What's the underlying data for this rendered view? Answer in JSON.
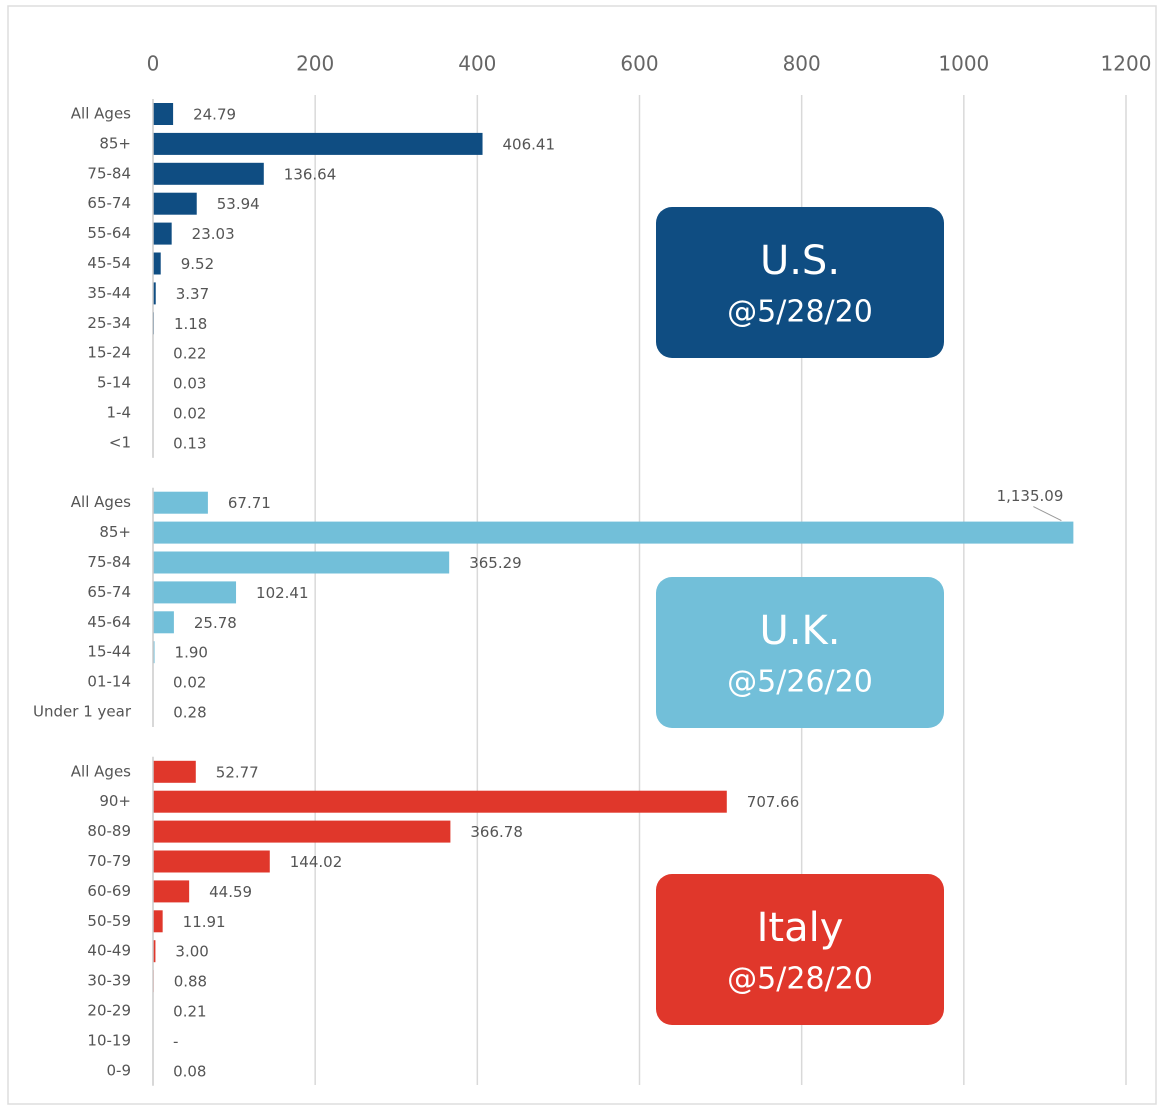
{
  "chart_data": {
    "type": "bar",
    "orientation": "horizontal",
    "xlim": [
      0,
      1200
    ],
    "xticks": [
      0,
      200,
      400,
      600,
      800,
      1000,
      1200
    ],
    "grid": true,
    "groups": [
      {
        "label": "U.S.",
        "date": "@5/28/20",
        "color": "#0f4d82",
        "categories": [
          "All Ages",
          "85+",
          "75-84",
          "65-74",
          "55-64",
          "45-54",
          "35-44",
          "25-34",
          "15-24",
          "5-14",
          "1-4",
          "<1"
        ],
        "values": [
          24.79,
          406.41,
          136.64,
          53.94,
          23.03,
          9.52,
          3.37,
          1.18,
          0.22,
          0.03,
          0.02,
          0.13
        ],
        "value_labels": [
          "24.79",
          "406.41",
          "136.64",
          "53.94",
          "23.03",
          "9.52",
          "3.37",
          "1.18",
          "0.22",
          "0.03",
          "0.02",
          "0.13"
        ]
      },
      {
        "label": "U.K.",
        "date": "@5/26/20",
        "color": "#72bfd9",
        "categories": [
          "All Ages",
          "85+",
          "75-84",
          "65-74",
          "45-64",
          "15-44",
          "01-14",
          "Under 1 year"
        ],
        "values": [
          67.71,
          1135.09,
          365.29,
          102.41,
          25.78,
          1.9,
          0.02,
          0.28
        ],
        "value_labels": [
          "67.71",
          "1,135.09",
          "365.29",
          "102.41",
          "25.78",
          "1.90",
          "0.02",
          "0.28"
        ]
      },
      {
        "label": "Italy",
        "date": "@5/28/20",
        "color": "#e0372b",
        "categories": [
          "All Ages",
          "90+",
          "80-89",
          "70-79",
          "60-69",
          "50-59",
          "40-49",
          "30-39",
          "20-29",
          "10-19",
          "0-9"
        ],
        "values": [
          52.77,
          707.66,
          366.78,
          144.02,
          44.59,
          11.91,
          3.0,
          0.88,
          0.21,
          0,
          0.08
        ],
        "value_labels": [
          "52.77",
          "707.66",
          "366.78",
          "144.02",
          "44.59",
          "11.91",
          "3.00",
          "0.88",
          "0.21",
          "-",
          "0.08"
        ]
      }
    ]
  }
}
